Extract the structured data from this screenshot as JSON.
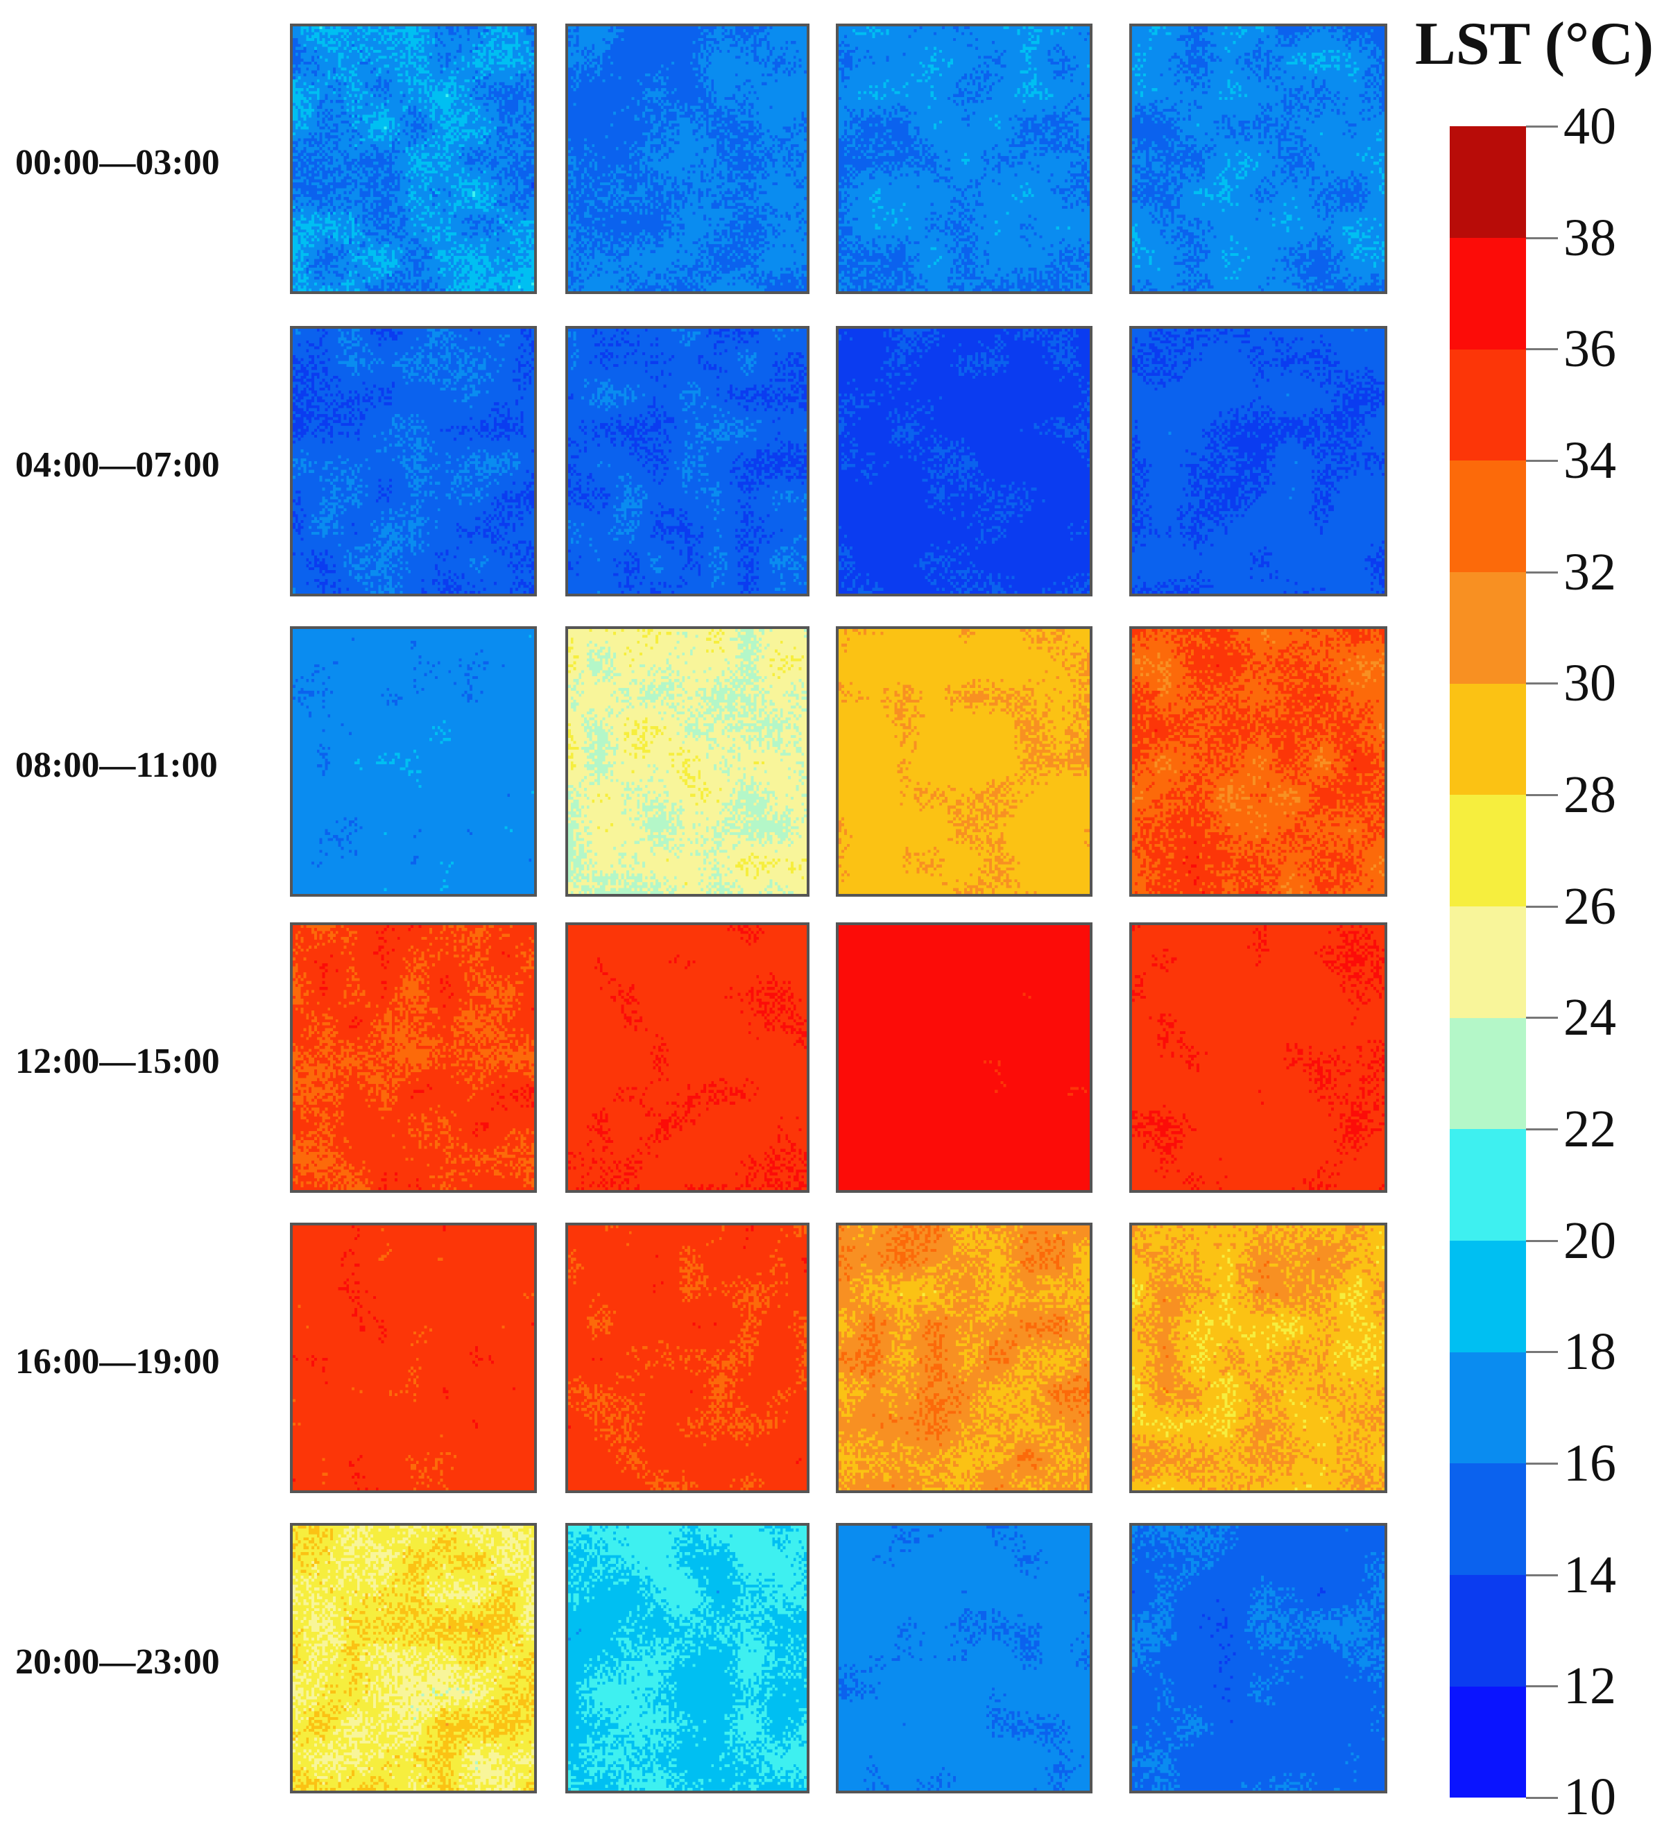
{
  "chart_data": {
    "type": "heatmap",
    "description_note": "",
    "colorbar": {
      "title": "LST (°C)",
      "min": 10,
      "max": 40,
      "ticks": [
        40,
        38,
        36,
        34,
        32,
        30,
        28,
        26,
        24,
        22,
        20,
        18,
        16,
        14,
        12,
        10
      ],
      "levels": [
        {
          "from": 10,
          "to": 12,
          "color": "#0a14ff"
        },
        {
          "from": 12,
          "to": 14,
          "color": "#0b3cf0"
        },
        {
          "from": 14,
          "to": 16,
          "color": "#0b62ee"
        },
        {
          "from": 16,
          "to": 18,
          "color": "#0a8cf0"
        },
        {
          "from": 18,
          "to": 20,
          "color": "#00bff2"
        },
        {
          "from": 20,
          "to": 22,
          "color": "#3ef0f0"
        },
        {
          "from": 22,
          "to": 24,
          "color": "#b4f7c8"
        },
        {
          "from": 24,
          "to": 26,
          "color": "#f8f59a"
        },
        {
          "from": 26,
          "to": 28,
          "color": "#f6ee3e"
        },
        {
          "from": 28,
          "to": 30,
          "color": "#fbc214"
        },
        {
          "from": 30,
          "to": 32,
          "color": "#f89022"
        },
        {
          "from": 32,
          "to": 34,
          "color": "#fc6a0a"
        },
        {
          "from": 34,
          "to": 36,
          "color": "#fc3608"
        },
        {
          "from": 36,
          "to": 38,
          "color": "#fc0c08"
        },
        {
          "from": 38,
          "to": 40,
          "color": "#b80c08"
        }
      ]
    },
    "rows": [
      {
        "label": "00:00—03:00",
        "panels": [
          {
            "mean_lst": 17.0,
            "spread": 3.0
          },
          {
            "mean_lst": 16.0,
            "spread": 1.2
          },
          {
            "mean_lst": 16.5,
            "spread": 2.0
          },
          {
            "mean_lst": 16.5,
            "spread": 2.0
          }
        ]
      },
      {
        "label": "04:00—07:00",
        "panels": [
          {
            "mean_lst": 15.0,
            "spread": 2.0
          },
          {
            "mean_lst": 15.0,
            "spread": 2.0
          },
          {
            "mean_lst": 13.5,
            "spread": 1.2
          },
          {
            "mean_lst": 14.5,
            "spread": 1.5
          }
        ]
      },
      {
        "label": "08:00—11:00",
        "panels": [
          {
            "mean_lst": 17.0,
            "spread": 1.2
          },
          {
            "mean_lst": 24.5,
            "spread": 2.2
          },
          {
            "mean_lst": 29.5,
            "spread": 1.2
          },
          {
            "mean_lst": 33.5,
            "spread": 2.5
          }
        ]
      },
      {
        "label": "12:00—15:00",
        "panels": [
          {
            "mean_lst": 34.5,
            "spread": 2.0
          },
          {
            "mean_lst": 35.5,
            "spread": 0.8
          },
          {
            "mean_lst": 36.5,
            "spread": 0.5
          },
          {
            "mean_lst": 35.5,
            "spread": 1.0
          }
        ]
      },
      {
        "label": "16:00—19:00",
        "panels": [
          {
            "mean_lst": 35.0,
            "spread": 1.2
          },
          {
            "mean_lst": 34.8,
            "spread": 1.5
          },
          {
            "mean_lst": 30.5,
            "spread": 2.5
          },
          {
            "mean_lst": 29.5,
            "spread": 2.5
          }
        ]
      },
      {
        "label": "20:00—23:00",
        "panels": [
          {
            "mean_lst": 27.0,
            "spread": 3.0
          },
          {
            "mean_lst": 20.0,
            "spread": 1.8
          },
          {
            "mean_lst": 16.5,
            "spread": 1.0
          },
          {
            "mean_lst": 15.5,
            "spread": 1.5
          }
        ]
      }
    ]
  }
}
